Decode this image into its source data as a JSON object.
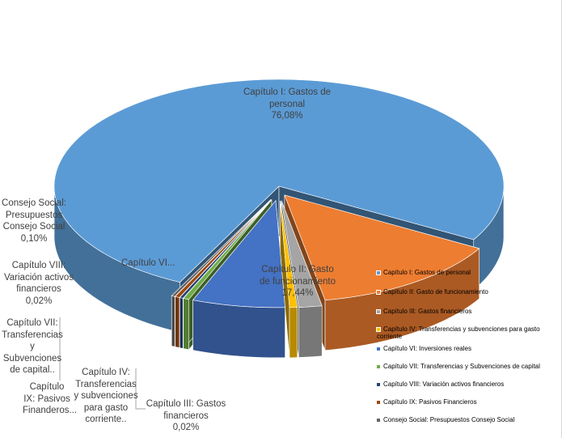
{
  "chart_data": {
    "type": "pie",
    "style": "3d-exploded",
    "title": "",
    "legend_position": "bottom-right",
    "slices": [
      {
        "name": "Capítulo I: Gastos de personal",
        "value": 76.08,
        "label": "Capítulo I: Gastos de personal",
        "pct_label": "76,08%",
        "color": "#5b9bd5"
      },
      {
        "name": "Capítulo II: Gasto de funcionamiento",
        "value": 17.44,
        "label": "Capítulo II: Gasto de funcionamiento",
        "pct_label": "17,44%",
        "color": "#ed7d31"
      },
      {
        "name": "Capítulo III: Gastos financieros",
        "value": 0.02,
        "label": "Capítulo III: Gastos financieros",
        "pct_label": "0,02%",
        "color": "#a5a5a5"
      },
      {
        "name": "Capítulo IV: Transferencias y subvenciones para gasto corriente",
        "value": 0.8,
        "label": "Capítulo IV: Transferencias y subvenciones para gasto corriente..",
        "pct_label": "",
        "color": "#ffc000"
      },
      {
        "name": "Capítulo VI: Inversiones reales",
        "value": 4.5,
        "label": "Capítulo VI...",
        "pct_label": "",
        "color": "#4472c4"
      },
      {
        "name": "Capítulo VII: Transferencias y Subvenciones de capital",
        "value": 0.6,
        "label": "Capítulo VII: Transferencias y Subvenciones de capital..",
        "pct_label": "",
        "color": "#70ad47"
      },
      {
        "name": "Capítulo VIII: Variación activos financieros",
        "value": 0.02,
        "label": "Capítulo VIII: Variación activos financieros",
        "pct_label": "0,02%",
        "color": "#264478"
      },
      {
        "name": "Capítulo IX: Pasivos Financieros",
        "value": 0.44,
        "label": "Capítulo IX: Pasivos Finanderos...",
        "pct_label": "",
        "color": "#9e480e"
      },
      {
        "name": "Consejo Social: Presupuestos Consejo Social",
        "value": 0.1,
        "label": "Consejo Social: Presupuestos Consejo Social",
        "pct_label": "0,10%",
        "color": "#636363"
      }
    ]
  },
  "legend": [
    "Capítulo I: Gastos de personal",
    "Capítulo II: Gasto de funcionamiento",
    "Capítulo III: Gastos financieros",
    "Capítulo IV: Transferencias y subvenciones para gasto corriente",
    "Capítulo VI: Inversiones reales",
    "Capítulo VII: Transferencias y Subvenciones de capital",
    "Capítulo VIII: Variación activos financieros",
    "Capítulo IX: Pasivos Financieros",
    "Consejo Social: Presupuestos Consejo Social"
  ]
}
